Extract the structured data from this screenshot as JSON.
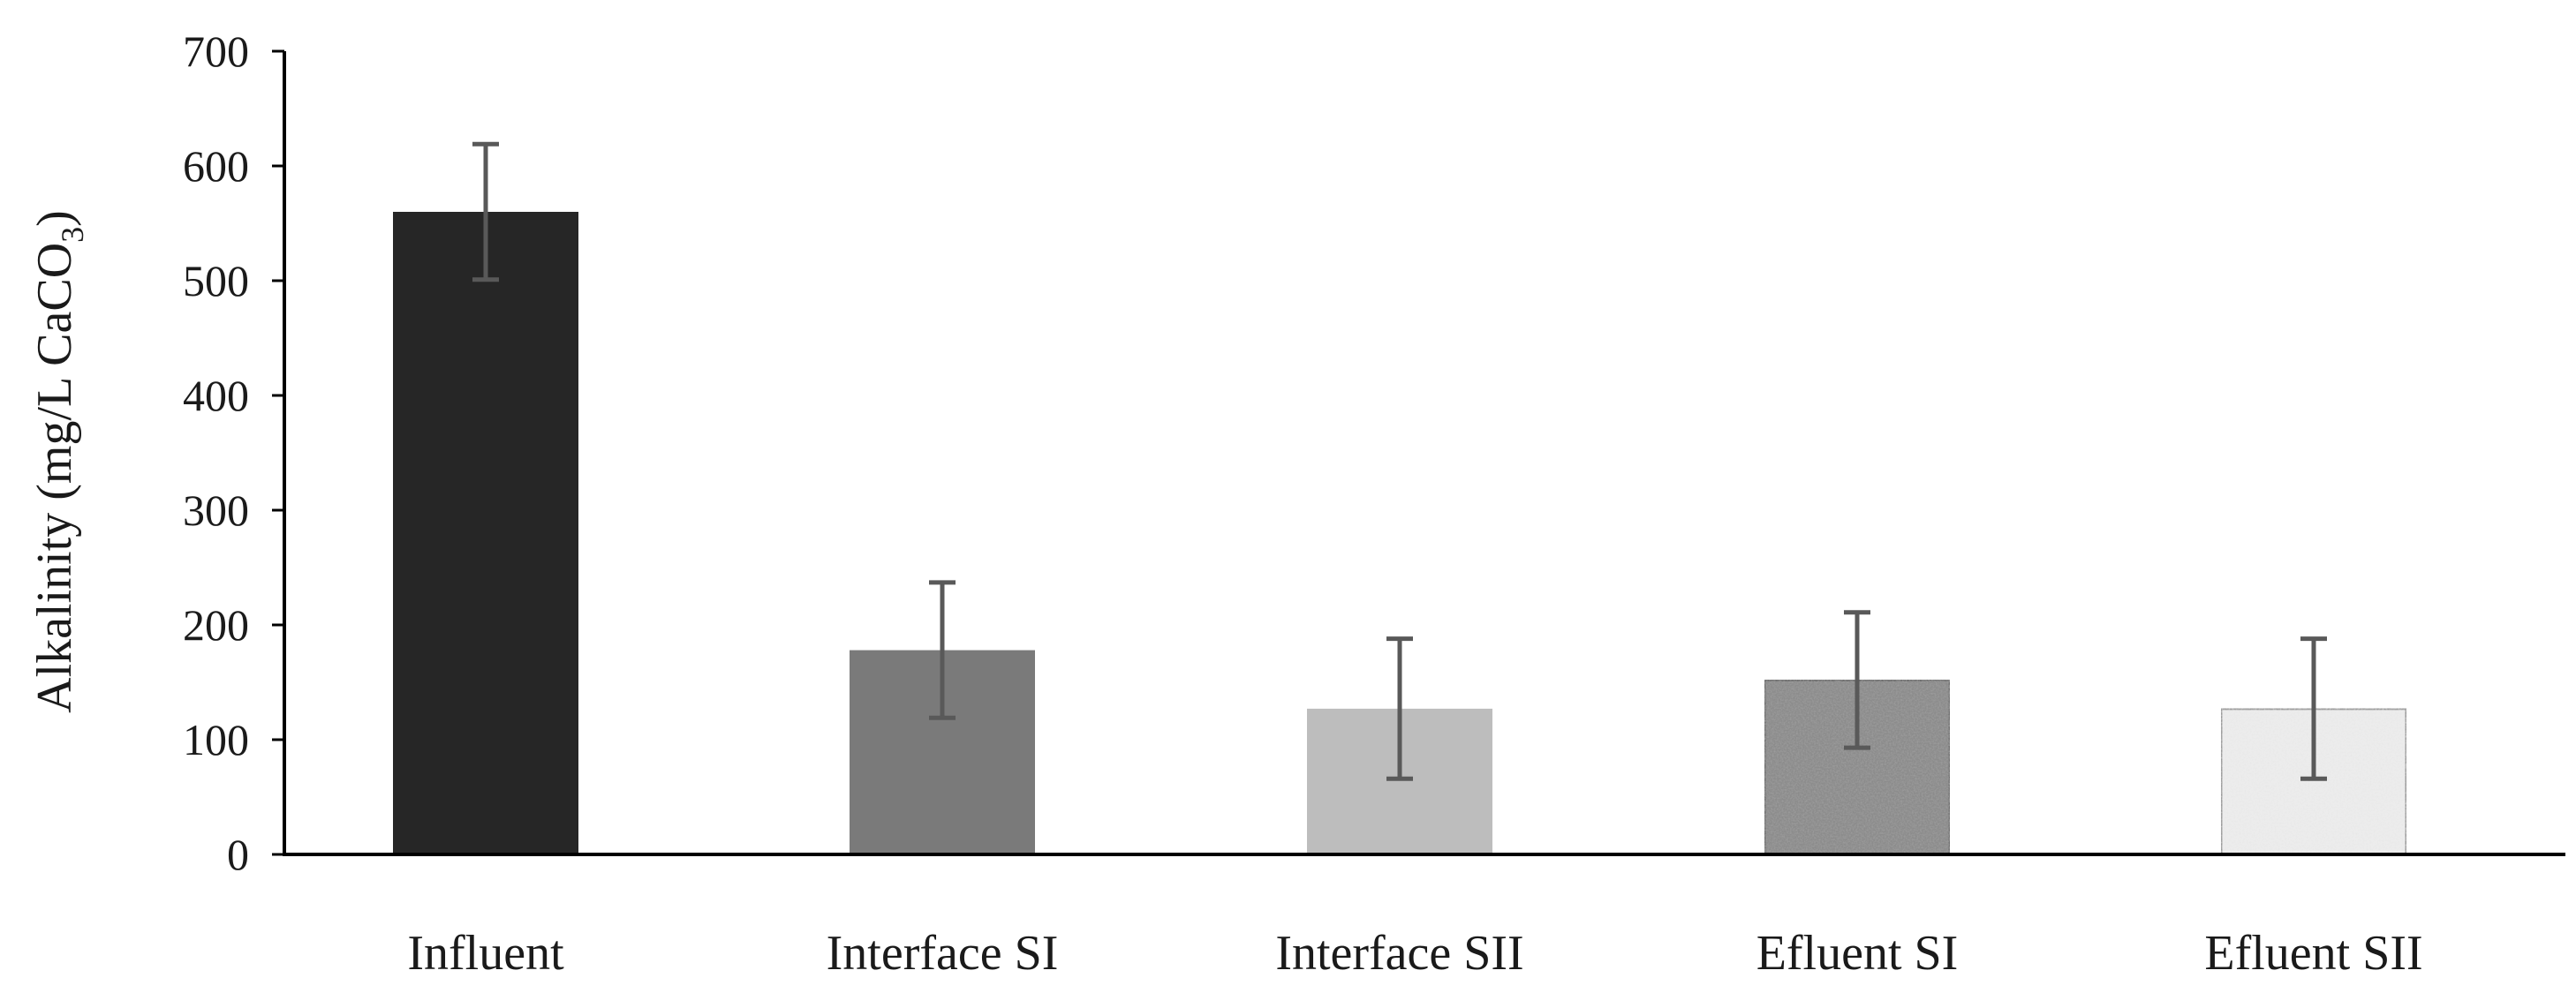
{
  "chart_data": {
    "type": "bar",
    "categories": [
      "Influent",
      "Interface SI",
      "Interface SII",
      "Efluent SI",
      "Efluent SII"
    ],
    "values": [
      560,
      178,
      127,
      152,
      127
    ],
    "errors": [
      59,
      59,
      61,
      59,
      61
    ],
    "ylabel": "Alkalinity (mg/L  CaCO3)",
    "ylabel_main": "Alkalinity (mg/L  CaCO",
    "ylabel_sub": "3",
    "ylabel_close": ")",
    "ylim": [
      0,
      700
    ],
    "yticks": [
      0,
      100,
      200,
      300,
      400,
      500,
      600,
      700
    ],
    "grid": false,
    "bar_fills": [
      "solid-black",
      "solid-dark-gray",
      "solid-light-gray",
      "speckled-dark",
      "speckled-light"
    ],
    "colors": {
      "influent": "#262626",
      "interface_si": "#7a7a7a",
      "interface_sii": "#bdbdbd",
      "efluent_si_base": "#8c8c8c",
      "efluent_sii_base": "#ececec",
      "error_bar": "#595959",
      "axis": "#000000"
    }
  }
}
